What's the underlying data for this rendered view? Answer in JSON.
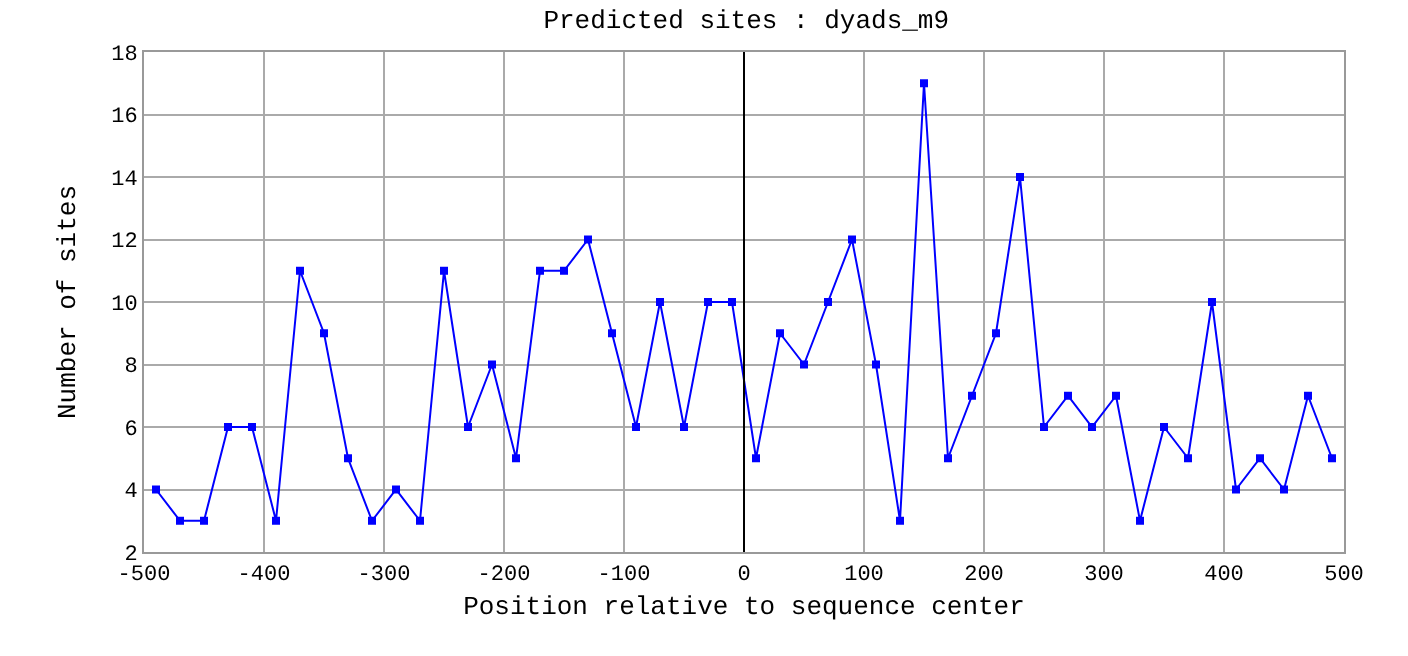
{
  "chart_data": {
    "type": "line",
    "title": "Predicted sites : dyads_m9",
    "xlabel": "Position relative to sequence center",
    "ylabel": "Number of sites",
    "x": [
      -490,
      -470,
      -450,
      -430,
      -410,
      -390,
      -370,
      -350,
      -330,
      -310,
      -290,
      -270,
      -250,
      -230,
      -210,
      -190,
      -170,
      -150,
      -130,
      -110,
      -90,
      -70,
      -50,
      -30,
      -10,
      10,
      30,
      50,
      70,
      90,
      110,
      130,
      150,
      170,
      190,
      210,
      230,
      250,
      270,
      290,
      310,
      330,
      350,
      370,
      390,
      410,
      430,
      450,
      470,
      490
    ],
    "series": [
      {
        "color": "#0000ff",
        "values": [
          4,
          3,
          3,
          6,
          6,
          3,
          11,
          9,
          5,
          3,
          4,
          3,
          11,
          6,
          8,
          5,
          11,
          11,
          12,
          9,
          6,
          10,
          6,
          10,
          10,
          5,
          9,
          8,
          10,
          12,
          8,
          3,
          17,
          5,
          7,
          9,
          14,
          6,
          7,
          6,
          7,
          3,
          6,
          5,
          10,
          4,
          5,
          4,
          7,
          5
        ]
      }
    ],
    "xlim": [
      -500,
      500
    ],
    "xticks": [
      -500,
      -400,
      -300,
      -200,
      -100,
      0,
      100,
      200,
      300,
      400,
      500
    ],
    "ylim": [
      2,
      18
    ],
    "yticks": [
      2,
      4,
      6,
      8,
      10,
      12,
      14,
      16,
      18
    ],
    "grid": true,
    "marker": "square",
    "line_style": "solid",
    "ref_lines": [
      {
        "axis": "x",
        "value": 0,
        "label": null,
        "color": "#000000"
      }
    ]
  }
}
